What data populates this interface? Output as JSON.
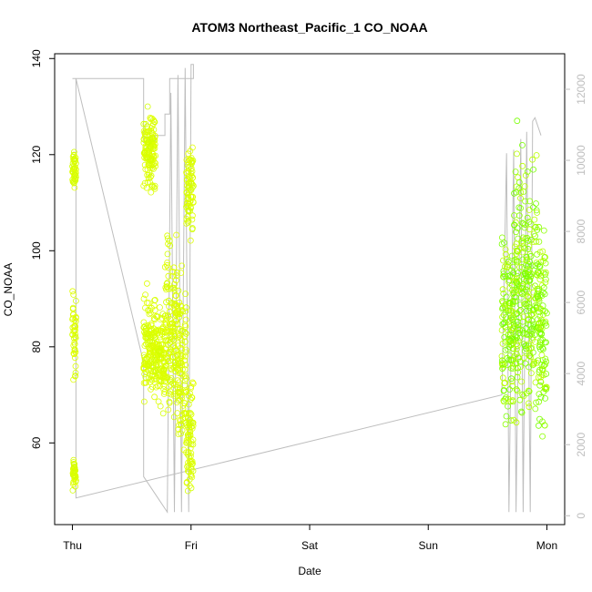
{
  "chart_data": {
    "type": "scatter",
    "title": "ATOM3 Northeast_Pacific_1 CO_NOAA",
    "xlabel": "Date",
    "ylabel": "CO_NOAA",
    "x_ticks": [
      "Thu",
      "Fri",
      "Sat",
      "Sun",
      "Mon"
    ],
    "x_tick_values": [
      0,
      1,
      2,
      3,
      4
    ],
    "xlim": [
      -0.15,
      4.15
    ],
    "ylim": [
      43,
      141
    ],
    "y_ticks": [
      60,
      80,
      100,
      120,
      140
    ],
    "y2lim": [
      -250,
      13000
    ],
    "y2_ticks": [
      0,
      2000,
      4000,
      6000,
      8000,
      10000,
      12000
    ],
    "grid": false,
    "point_colors": [
      "#e1ff00",
      "#dcff00",
      "#d2ff00",
      "#b9ff00",
      "#8cff00",
      "#78ff00"
    ],
    "series": [
      {
        "values": [
          {
            "x_range": [
              0.0,
              0.03
            ],
            "clusters": [
              [
                49,
                58
              ],
              [
                70,
                95
              ],
              [
                110,
                123
              ]
            ]
          },
          {
            "x_range": [
              0.6,
              0.7
            ],
            "clusters": [
              [
                66,
                95
              ],
              [
                110,
                132
              ]
            ]
          },
          {
            "x_range": [
              0.7,
              0.78
            ],
            "clusters": [
              [
                64,
                90
              ]
            ]
          },
          {
            "x_range": [
              0.78,
              0.88
            ],
            "clusters": [
              [
                58,
                110
              ]
            ]
          },
          {
            "x_range": [
              0.88,
              0.96
            ],
            "clusters": [
              [
                52,
                100
              ]
            ]
          },
          {
            "x_range": [
              0.96,
              1.02
            ],
            "clusters": [
              [
                47,
                75
              ],
              [
                100,
                127
              ]
            ]
          },
          {
            "x_range": [
              3.62,
              3.72
            ],
            "clusters": [
              [
                53,
                115
              ]
            ]
          },
          {
            "x_range": [
              3.72,
              3.82
            ],
            "clusters": [
              [
                55,
                130
              ]
            ]
          },
          {
            "x_range": [
              3.82,
              3.92
            ],
            "clusters": [
              [
                58,
                125
              ]
            ]
          },
          {
            "x_range": [
              3.92,
              4.0
            ],
            "clusters": [
              [
                55,
                114
              ]
            ]
          }
        ]
      }
    ],
    "altitude_line": {
      "color": "#bebebe",
      "description_ref": "right axis",
      "points": [
        [
          0.0,
          12300
        ],
        [
          0.04,
          12300
        ],
        [
          0.6,
          12300
        ],
        [
          0.6,
          10500
        ],
        [
          0.7,
          10500
        ],
        [
          0.7,
          10700
        ],
        [
          0.78,
          10700
        ],
        [
          0.78,
          11300
        ],
        [
          0.82,
          11300
        ],
        [
          0.82,
          12300
        ],
        [
          1.02,
          12300
        ],
        [
          1.02,
          12700
        ],
        [
          1.0,
          12700
        ],
        [
          0.98,
          100
        ],
        [
          0.95,
          12600
        ],
        [
          0.92,
          100
        ],
        [
          0.89,
          12400
        ],
        [
          0.86,
          100
        ],
        [
          0.83,
          11900
        ],
        [
          0.8,
          100
        ],
        [
          0.6,
          1100
        ],
        [
          0.6,
          4300
        ],
        [
          0.03,
          12300
        ],
        [
          0.03,
          500
        ],
        [
          3.62,
          3400
        ],
        [
          3.66,
          10200
        ],
        [
          3.68,
          100
        ],
        [
          3.72,
          10300
        ],
        [
          3.74,
          100
        ],
        [
          3.78,
          10600
        ],
        [
          3.8,
          100
        ],
        [
          3.83,
          10800
        ],
        [
          3.86,
          100
        ],
        [
          3.88,
          11100
        ],
        [
          3.9,
          11200
        ],
        [
          3.95,
          10700
        ]
      ]
    }
  }
}
